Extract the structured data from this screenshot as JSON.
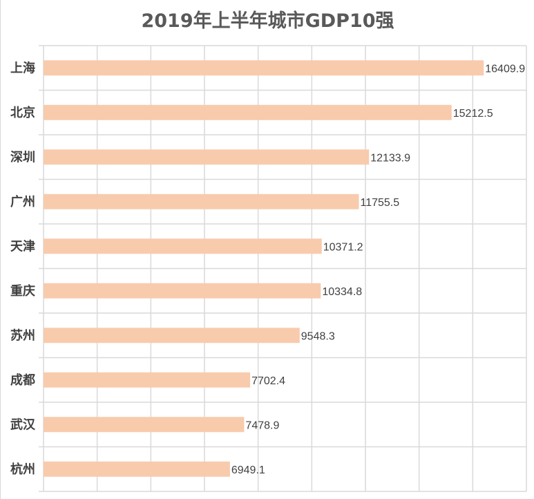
{
  "chart_data": {
    "type": "bar",
    "orientation": "horizontal",
    "title": "2019年上半年城市GDP10强",
    "categories": [
      "上海",
      "北京",
      "深圳",
      "广州",
      "天津",
      "重庆",
      "苏州",
      "成都",
      "武汉",
      "杭州"
    ],
    "values": [
      16409.9,
      15212.5,
      12133.9,
      11755.5,
      10371.2,
      10334.8,
      9548.3,
      7702.4,
      7478.9,
      6949.1
    ],
    "xlim": [
      0,
      18000
    ],
    "x_grid_step": 2000,
    "grid": true,
    "data_labels": true,
    "bar_color": "#F8CBAD",
    "grid_color": "#D9D9D9",
    "xlabel": "",
    "ylabel": ""
  }
}
